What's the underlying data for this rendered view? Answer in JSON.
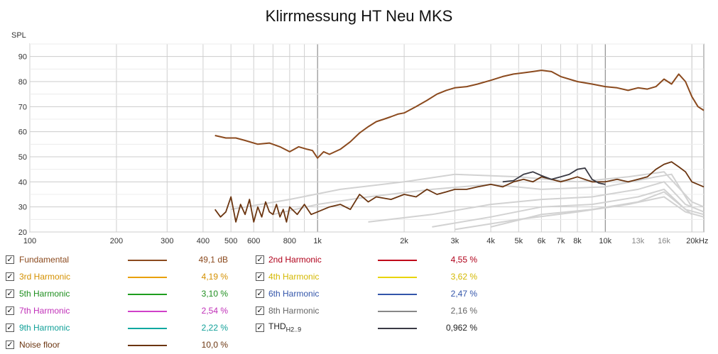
{
  "chart_data": {
    "type": "line",
    "title": "Klirrmessung HT Neu MKS",
    "ylabel": "SPL",
    "xscale": "log",
    "xlim": [
      100,
      22000
    ],
    "ylim": [
      20,
      95
    ],
    "grid": true,
    "x_tick_labels": [
      {
        "x": 100,
        "label": "100"
      },
      {
        "x": 200,
        "label": "200"
      },
      {
        "x": 300,
        "label": "300"
      },
      {
        "x": 400,
        "label": "400"
      },
      {
        "x": 500,
        "label": "500"
      },
      {
        "x": 600,
        "label": "600"
      },
      {
        "x": 800,
        "label": "800"
      },
      {
        "x": 1000,
        "label": "1k"
      },
      {
        "x": 2000,
        "label": "2k"
      },
      {
        "x": 3000,
        "label": "3k"
      },
      {
        "x": 4000,
        "label": "4k"
      },
      {
        "x": 5000,
        "label": "5k"
      },
      {
        "x": 6000,
        "label": "6k"
      },
      {
        "x": 7000,
        "label": "7k"
      },
      {
        "x": 8000,
        "label": "8k"
      },
      {
        "x": 10000,
        "label": "10k"
      },
      {
        "x": 13000,
        "label": "13k"
      },
      {
        "x": 16000,
        "label": "16k"
      },
      {
        "x": 20000,
        "label": "20kHz"
      }
    ],
    "y_ticks": [
      20,
      30,
      40,
      50,
      60,
      70,
      80,
      90
    ],
    "series": [
      {
        "name": "Fundamental",
        "color": "#8b4a1e",
        "x": [
          440,
          480,
          520,
          560,
          620,
          680,
          740,
          800,
          860,
          920,
          960,
          1000,
          1050,
          1100,
          1200,
          1300,
          1400,
          1500,
          1600,
          1700,
          1800,
          1900,
          2000,
          2200,
          2400,
          2600,
          2800,
          3000,
          3300,
          3600,
          4000,
          4400,
          4800,
          5200,
          5600,
          6000,
          6500,
          7000,
          8000,
          9000,
          10000,
          11000,
          12000,
          13000,
          14000,
          15000,
          16000,
          17000,
          18000,
          19000,
          20000,
          21000,
          22000
        ],
        "y": [
          58.5,
          57.5,
          57.5,
          56.5,
          55,
          55.5,
          54,
          52,
          54,
          53,
          52.5,
          49.5,
          52,
          51,
          53,
          56,
          59.5,
          62,
          64,
          65,
          66,
          67,
          67.5,
          70,
          72.5,
          75,
          76.5,
          77.5,
          78,
          79,
          80.5,
          82,
          83,
          83.5,
          84,
          84.5,
          84,
          82,
          80,
          79,
          78,
          77.5,
          76.5,
          77.5,
          77,
          78,
          81,
          79,
          83,
          80,
          74,
          70,
          68.5
        ]
      },
      {
        "name": "Noise floor",
        "color": "#6b3510",
        "x": [
          440,
          460,
          480,
          500,
          520,
          540,
          560,
          580,
          600,
          620,
          640,
          660,
          680,
          700,
          720,
          740,
          760,
          780,
          800,
          850,
          900,
          950,
          1000,
          1100,
          1200,
          1300,
          1400,
          1500,
          1600,
          1800,
          2000,
          2200,
          2400,
          2600,
          2800,
          3000,
          3300,
          3600,
          4000,
          4400,
          4800,
          5200,
          5600,
          6000,
          6500,
          7000,
          7500,
          8000,
          9000,
          10000,
          11000,
          12000,
          13000,
          14000,
          15000,
          16000,
          17000,
          18000,
          19000,
          20000,
          21000,
          22000
        ],
        "y": [
          29,
          26,
          28,
          34,
          24,
          31,
          27,
          33,
          24,
          30,
          26,
          32,
          28,
          27,
          31,
          26,
          29,
          24,
          30,
          27,
          31,
          27,
          28,
          30,
          31,
          29,
          35,
          32,
          34,
          33,
          35,
          34,
          37,
          35,
          36,
          37,
          37,
          38,
          39,
          38,
          40,
          41,
          40,
          42,
          41,
          40,
          41,
          42,
          40,
          40,
          41,
          40,
          41,
          42,
          45,
          47,
          48,
          46,
          44,
          40,
          39,
          38
        ]
      },
      {
        "name": "THD",
        "color": "#3a3a44",
        "x": [
          4400,
          4800,
          5200,
          5600,
          6000,
          6500,
          7000,
          7500,
          8000,
          8500,
          9000,
          9500,
          10000
        ],
        "y": [
          40,
          40.5,
          43,
          44,
          42.5,
          41,
          42,
          43,
          45,
          45.5,
          41,
          39.5,
          39
        ]
      }
    ]
  },
  "legend": [
    {
      "label": "Fundamental",
      "value": "49,1 dB",
      "color": "#8b4a1e",
      "text_color": "#8b4a1e"
    },
    {
      "label": "2nd Harmonic",
      "value": "4,55 %",
      "color": "#c0001a",
      "text_color": "#b0001a"
    },
    {
      "label": "3rd Harmonic",
      "value": "4,19 %",
      "color": "#e8a000",
      "text_color": "#d49000"
    },
    {
      "label": "4th Harmonic",
      "value": "3,62 %",
      "color": "#e8d400",
      "text_color": "#d4b800"
    },
    {
      "label": "5th Harmonic",
      "value": "3,10 %",
      "color": "#1e9e1e",
      "text_color": "#1e8e1e"
    },
    {
      "label": "6th Harmonic",
      "value": "2,47 %",
      "color": "#3355aa",
      "text_color": "#3355aa"
    },
    {
      "label": "7th Harmonic",
      "value": "2,54 %",
      "color": "#d040c8",
      "text_color": "#c030b8"
    },
    {
      "label": "8th Harmonic",
      "value": "2,16 %",
      "color": "#888888",
      "text_color": "#666666"
    },
    {
      "label": "9th Harmonic",
      "value": "2,22 %",
      "color": "#10a8a0",
      "text_color": "#10a098"
    },
    {
      "label": "THD",
      "sub": "H2..9",
      "value": "0,962 %",
      "color": "#3a3a44",
      "text_color": "#222222"
    },
    {
      "label": "Noise floor",
      "value": "10,0 %",
      "color": "#6b3510",
      "text_color": "#6b3510"
    }
  ]
}
